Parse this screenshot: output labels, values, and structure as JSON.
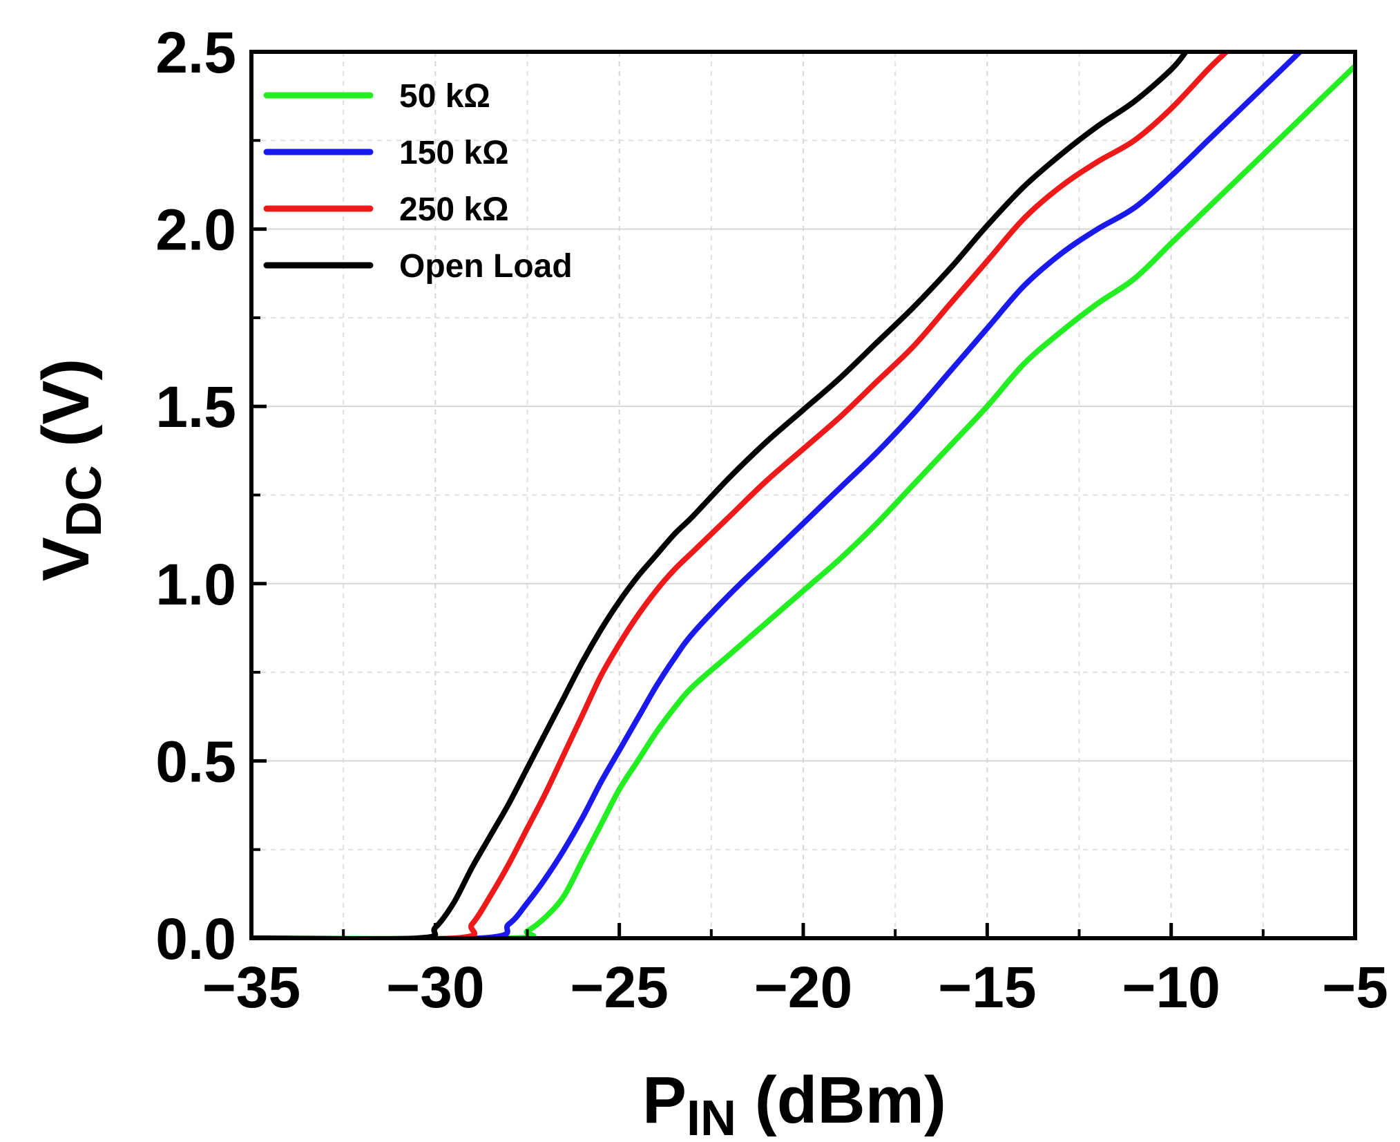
{
  "chart_data": {
    "type": "line",
    "xlabel": {
      "main": "P",
      "sub": "IN",
      "unit": " (dBm)"
    },
    "ylabel": {
      "main": "V",
      "sub": "DC",
      "unit": " (V)"
    },
    "xlim": [
      -35,
      -5
    ],
    "ylim": [
      0,
      2.5
    ],
    "xticks": [
      -35,
      -30,
      -25,
      -20,
      -15,
      -10,
      -5
    ],
    "xtick_labels": [
      "−35",
      "−30",
      "−25",
      "−20",
      "−15",
      "−10",
      "−5"
    ],
    "yticks": [
      0,
      0.5,
      1.0,
      1.5,
      2.0,
      2.5
    ],
    "ytick_labels": [
      "0.0",
      "0.5",
      "1.0",
      "1.5",
      "2.0",
      "2.5"
    ],
    "grid": true,
    "legend_position": "top-left",
    "series": [
      {
        "name": "50 kΩ",
        "color": "#22ee22",
        "x": [
          -35,
          -28.0,
          -27.5,
          -27.0,
          -26.5,
          -26.0,
          -25.5,
          -25.0,
          -24.5,
          -24.0,
          -23.5,
          -23.0,
          -22.0,
          -21.0,
          -20.0,
          -19.0,
          -18.0,
          -17.0,
          -16.0,
          -15.0,
          -14.0,
          -13.0,
          -12.0,
          -11.0,
          -10.0,
          -9.0,
          -8.0,
          -7.0,
          -6.0,
          -5.0
        ],
        "values": [
          0,
          0,
          0.02,
          0.06,
          0.12,
          0.22,
          0.32,
          0.42,
          0.5,
          0.58,
          0.65,
          0.71,
          0.8,
          0.89,
          0.98,
          1.07,
          1.17,
          1.28,
          1.39,
          1.5,
          1.62,
          1.71,
          1.79,
          1.86,
          1.96,
          2.06,
          2.16,
          2.26,
          2.36,
          2.46
        ]
      },
      {
        "name": "150 kΩ",
        "color": "#1a1aee",
        "x": [
          -35,
          -28.8,
          -28.0,
          -27.5,
          -27.0,
          -26.5,
          -26.0,
          -25.5,
          -25.0,
          -24.5,
          -24.0,
          -23.5,
          -23.0,
          -22.0,
          -21.0,
          -20.0,
          -19.0,
          -18.0,
          -17.0,
          -16.0,
          -15.0,
          -14.0,
          -13.0,
          -12.0,
          -11.0,
          -10.0,
          -9.0,
          -8.0,
          -7.0,
          -6.5
        ],
        "values": [
          0,
          0,
          0.04,
          0.1,
          0.17,
          0.25,
          0.34,
          0.44,
          0.53,
          0.62,
          0.71,
          0.79,
          0.86,
          0.97,
          1.07,
          1.17,
          1.27,
          1.37,
          1.48,
          1.6,
          1.72,
          1.84,
          1.93,
          2.0,
          2.06,
          2.15,
          2.25,
          2.35,
          2.45,
          2.5
        ]
      },
      {
        "name": "250 kΩ",
        "color": "#ee1a1a",
        "x": [
          -35,
          -29.5,
          -29.0,
          -28.5,
          -28.0,
          -27.5,
          -27.0,
          -26.5,
          -26.0,
          -25.5,
          -25.0,
          -24.5,
          -24.0,
          -23.5,
          -23.0,
          -22.0,
          -21.0,
          -20.0,
          -19.0,
          -18.0,
          -17.0,
          -16.0,
          -15.0,
          -14.0,
          -13.0,
          -12.0,
          -11.0,
          -10.0,
          -9.0,
          -8.5
        ],
        "values": [
          0,
          0,
          0.04,
          0.12,
          0.21,
          0.31,
          0.41,
          0.52,
          0.63,
          0.74,
          0.83,
          0.91,
          0.98,
          1.04,
          1.09,
          1.19,
          1.29,
          1.38,
          1.47,
          1.57,
          1.67,
          1.79,
          1.91,
          2.03,
          2.12,
          2.19,
          2.25,
          2.34,
          2.45,
          2.5
        ]
      },
      {
        "name": "Open Load",
        "color": "#000000",
        "x": [
          -35,
          -30.5,
          -30.0,
          -29.5,
          -29.0,
          -28.5,
          -28.0,
          -27.5,
          -27.0,
          -26.5,
          -26.0,
          -25.5,
          -25.0,
          -24.5,
          -24.0,
          -23.5,
          -23.0,
          -22.0,
          -21.0,
          -20.0,
          -19.0,
          -18.0,
          -17.0,
          -16.0,
          -15.0,
          -14.0,
          -13.0,
          -12.0,
          -11.0,
          -10.0,
          -9.6
        ],
        "values": [
          0,
          0,
          0.03,
          0.1,
          0.2,
          0.29,
          0.38,
          0.48,
          0.58,
          0.68,
          0.78,
          0.87,
          0.95,
          1.02,
          1.08,
          1.14,
          1.19,
          1.3,
          1.4,
          1.49,
          1.58,
          1.68,
          1.78,
          1.89,
          2.01,
          2.12,
          2.21,
          2.29,
          2.36,
          2.45,
          2.5
        ]
      }
    ]
  }
}
